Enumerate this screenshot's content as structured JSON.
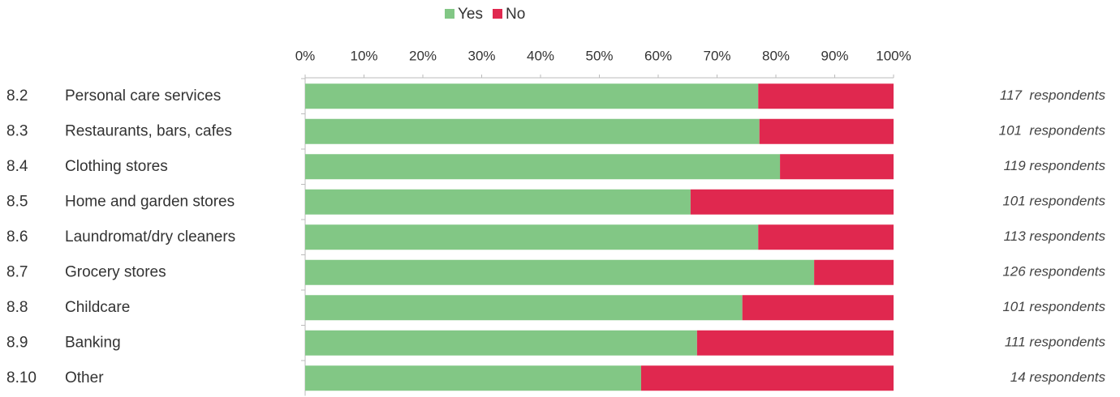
{
  "chart_data": {
    "type": "stacked-bar-horizontal",
    "category_codes": [
      "8.2",
      "8.3",
      "8.4",
      "8.5",
      "8.6",
      "8.7",
      "8.8",
      "8.9",
      "8.10"
    ],
    "categories": [
      "Personal care services",
      "Restaurants, bars, cafes",
      "Clothing stores",
      "Home and garden stores",
      "Laundromat/dry cleaners",
      "Grocery stores",
      "Childcare",
      "Banking",
      "Other"
    ],
    "series": [
      {
        "name": "Yes",
        "color": "#82c785",
        "values": [
          77.0,
          77.2,
          80.7,
          65.5,
          77.0,
          86.5,
          74.3,
          66.6,
          57.1
        ]
      },
      {
        "name": "No",
        "color": "#e0284f",
        "values": [
          23.0,
          22.8,
          19.3,
          34.5,
          23.0,
          13.5,
          25.7,
          33.4,
          42.9
        ]
      }
    ],
    "annotations": [
      "117  respondents",
      "101  respondents",
      "119 respondents",
      "101 respondents",
      "113 respondents",
      "126 respondents",
      "101 respondents",
      "111 respondents",
      "14 respondents"
    ],
    "xlim": [
      0,
      100
    ],
    "xticks": [
      {
        "value": 0,
        "label": "0%"
      },
      {
        "value": 10,
        "label": "10%"
      },
      {
        "value": 20,
        "label": "20%"
      },
      {
        "value": 30,
        "label": "30%"
      },
      {
        "value": 40,
        "label": "40%"
      },
      {
        "value": 50,
        "label": "50%"
      },
      {
        "value": 60,
        "label": "60%"
      },
      {
        "value": 70,
        "label": "70%"
      },
      {
        "value": 80,
        "label": "80%"
      },
      {
        "value": 90,
        "label": "90%"
      },
      {
        "value": 100,
        "label": "100%"
      }
    ],
    "legend": "top"
  }
}
